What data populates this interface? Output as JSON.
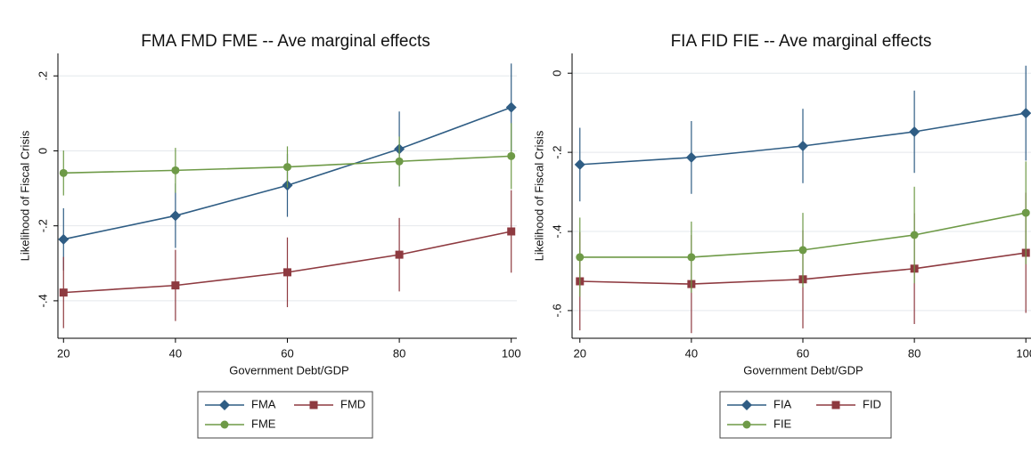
{
  "chart_data": [
    {
      "type": "line",
      "title": "FMA FMD FME -- Ave marginal effects",
      "x_label": "Government Debt/GDP",
      "y_label": "Likelihood of Fiscal Crisis",
      "x": [
        20,
        40,
        60,
        80,
        100
      ],
      "xlim": [
        19,
        101
      ],
      "xticks": [
        20,
        40,
        60,
        80,
        100
      ],
      "ylim": [
        -0.5,
        0.26
      ],
      "yticks": [
        {
          "value": -0.4,
          "label": "-.4"
        },
        {
          "value": -0.2,
          "label": "-.2"
        },
        0,
        {
          "value": 0.2,
          "label": ".2"
        }
      ],
      "grid": true,
      "legend": "bottom",
      "series": [
        {
          "name": "FMA",
          "color": "#2f5d84",
          "marker": "diamond",
          "values": [
            -0.236,
            -0.173,
            -0.092,
            0.005,
            0.116
          ],
          "errors": [
            0.083,
            0.086,
            0.084,
            0.1,
            0.117
          ]
        },
        {
          "name": "FMD",
          "color": "#8e3a40",
          "marker": "square",
          "values": [
            -0.378,
            -0.359,
            -0.324,
            -0.277,
            -0.215
          ],
          "errors": [
            0.095,
            0.095,
            0.093,
            0.098,
            0.11
          ]
        },
        {
          "name": "FME",
          "color": "#6e9a47",
          "marker": "circle",
          "values": [
            -0.059,
            -0.052,
            -0.043,
            -0.028,
            -0.014
          ],
          "errors": [
            0.06,
            0.06,
            0.055,
            0.066,
            0.088
          ]
        }
      ]
    },
    {
      "type": "line",
      "title": "FIA FID FIE -- Ave marginal effects",
      "x_label": "Government Debt/GDP",
      "y_label": "Likelihood of Fiscal Crisis",
      "x": [
        20,
        40,
        60,
        80,
        100
      ],
      "xlim": [
        18.6,
        101.4
      ],
      "xticks": [
        20,
        40,
        60,
        80,
        100
      ],
      "ylim": [
        -0.67,
        0.05
      ],
      "yticks": [
        {
          "value": -0.6,
          "label": "-.6"
        },
        {
          "value": -0.4,
          "label": "-.4"
        },
        {
          "value": -0.2,
          "label": "-.2"
        },
        0
      ],
      "grid": true,
      "legend": "bottom",
      "series": [
        {
          "name": "FIA",
          "color": "#2f5d84",
          "marker": "diamond",
          "values": [
            -0.231,
            -0.213,
            -0.184,
            -0.148,
            -0.101
          ],
          "errors": [
            0.093,
            0.092,
            0.094,
            0.104,
            0.12
          ]
        },
        {
          "name": "FID",
          "color": "#8e3a40",
          "marker": "square",
          "values": [
            -0.526,
            -0.533,
            -0.521,
            -0.494,
            -0.454
          ],
          "errors": [
            0.124,
            0.124,
            0.124,
            0.14,
            0.152
          ]
        },
        {
          "name": "FIE",
          "color": "#6e9a47",
          "marker": "circle",
          "values": [
            -0.465,
            -0.465,
            -0.447,
            -0.409,
            -0.353
          ],
          "errors": [
            0.1,
            0.09,
            0.094,
            0.122,
            0.13
          ]
        }
      ]
    }
  ]
}
